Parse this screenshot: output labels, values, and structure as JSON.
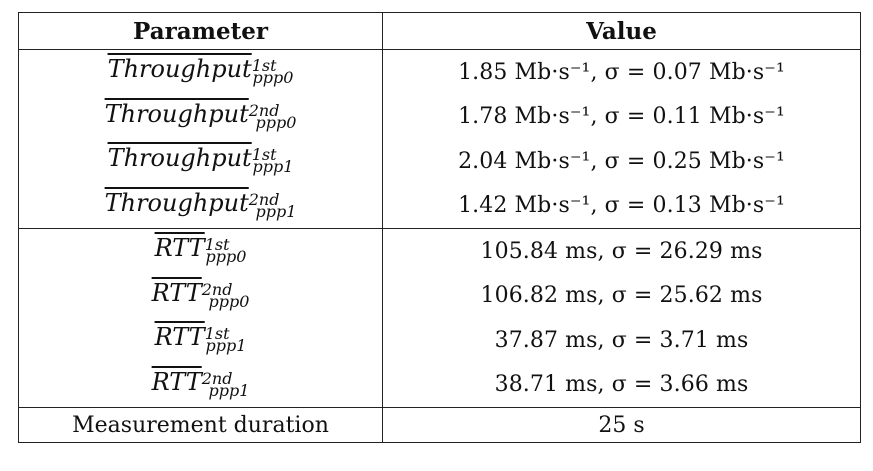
{
  "table": {
    "headers": [
      "Parameter",
      "Value"
    ],
    "throughput_rows": [
      {
        "name": "Throughput",
        "sup": "1st",
        "sub": "ppp0",
        "value": "1.85 Mb·s⁻¹, σ = 0.07 Mb·s⁻¹"
      },
      {
        "name": "Throughput",
        "sup": "2nd",
        "sub": "ppp0",
        "value": "1.78 Mb·s⁻¹, σ = 0.11 Mb·s⁻¹"
      },
      {
        "name": "Throughput",
        "sup": "1st",
        "sub": "ppp1",
        "value": "2.04 Mb·s⁻¹, σ = 0.25 Mb·s⁻¹"
      },
      {
        "name": "Throughput",
        "sup": "2nd",
        "sub": "ppp1",
        "value": "1.42 Mb·s⁻¹, σ = 0.13 Mb·s⁻¹"
      }
    ],
    "rtt_rows": [
      {
        "name": "RTT",
        "sup": "1st",
        "sub": "ppp0",
        "value": "105.84 ms, σ = 26.29 ms"
      },
      {
        "name": "RTT",
        "sup": "2nd",
        "sub": "ppp0",
        "value": "106.82 ms, σ = 25.62 ms"
      },
      {
        "name": "RTT",
        "sup": "1st",
        "sub": "ppp1",
        "value": "37.87 ms, σ = 3.71 ms"
      },
      {
        "name": "RTT",
        "sup": "2nd",
        "sub": "ppp1",
        "value": "38.71 ms, σ = 3.66 ms"
      }
    ],
    "duration": {
      "label": "Measurement duration",
      "value": "25 s"
    }
  }
}
